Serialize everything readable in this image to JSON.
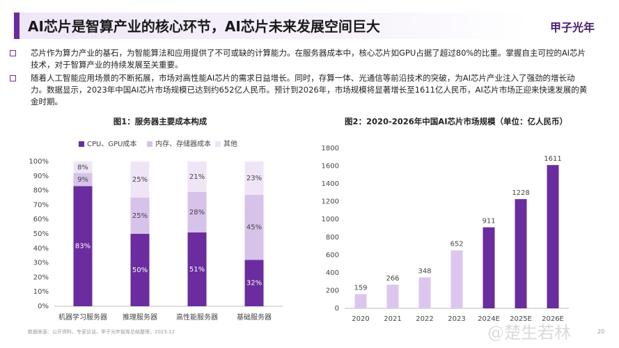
{
  "header": {
    "title": "AI芯片是智算产业的核心环节，AI芯片未来发展空间巨大",
    "logo": "甲子光年"
  },
  "bullets": [
    "芯片作为算力产业的基石，为智能算法和应用提供了不可或缺的计算能力。在服务器成本中，核心芯片如GPU占据了超过80%的比重。掌握自主可控的AI芯片技术，对于智算产业的持续发展至关重要。",
    "随着人工智能应用场景的不断拓展，市场对高性能AI芯片的需求日益增长。同时，存算一体、光通信等前沿技术的突破，为AI芯片产业注入了强劲的增长动力。数据显示，2023年中国AI芯片市场规模已达到约652亿人民币。预计到2026年，市场规模将显著增长至1611亿人民币，AI芯片市场正迎来快速发展的黄金时期。"
  ],
  "footer": {
    "source": "数据来源：公开资料，专家访谈，甲子光年智库总结整理，2023.12",
    "page_number": "20",
    "watermark": "@楚生若林"
  },
  "chart_data": [
    {
      "type": "stacked_bar",
      "title": "图1：服务器主要成本构成",
      "categories": [
        "机器学习服务器",
        "推理服务器",
        "高性能服务器",
        "基础服务器"
      ],
      "series": [
        {
          "name": "CPU、GPU成本",
          "color": "#6a2c9e",
          "values": [
            83,
            50,
            51,
            32
          ],
          "value_labels": [
            "83%",
            "50%",
            "51%",
            "32%"
          ]
        },
        {
          "name": "内存、存储器成本",
          "color": "#d7c2ea",
          "values": [
            9,
            25,
            28,
            45
          ],
          "value_labels": [
            "9%",
            "25%",
            "28%",
            "45%"
          ]
        },
        {
          "name": "其他",
          "color": "#efe5f7",
          "values": [
            8,
            25,
            21,
            23
          ],
          "value_labels": [
            "8%",
            "25%",
            "21%",
            "23%"
          ]
        }
      ],
      "ylim": [
        0,
        100
      ],
      "yticks": [
        {
          "value": 0,
          "label": "0%"
        },
        {
          "value": 10,
          "label": "10%"
        },
        {
          "value": 20,
          "label": "20%"
        },
        {
          "value": 30,
          "label": "30%"
        },
        {
          "value": 40,
          "label": "40%"
        },
        {
          "value": 50,
          "label": "50%"
        },
        {
          "value": 60,
          "label": "60%"
        },
        {
          "value": 70,
          "label": "70%"
        },
        {
          "value": 80,
          "label": "80%"
        },
        {
          "value": 90,
          "label": "90%"
        },
        {
          "value": 100,
          "label": "100%"
        }
      ],
      "grid": false
    },
    {
      "type": "bar",
      "title": "图2：2020-2026年中国AI芯片市场规模（单位：亿人民币）",
      "categories": [
        "2020",
        "2021",
        "2022",
        "2023",
        "2024E",
        "2025E",
        "2026E"
      ],
      "values": [
        159,
        266,
        348,
        652,
        911,
        1228,
        1611
      ],
      "colors": [
        "#dcc6ee",
        "#dcc6ee",
        "#dcc6ee",
        "#dcc6ee",
        "#6a2c9e",
        "#6a2c9e",
        "#6a2c9e"
      ],
      "ylim": [
        0,
        1800
      ],
      "yticks": [
        0,
        200,
        400,
        600,
        800,
        1000,
        1200,
        1400,
        1600,
        1800
      ],
      "grid": false
    }
  ]
}
